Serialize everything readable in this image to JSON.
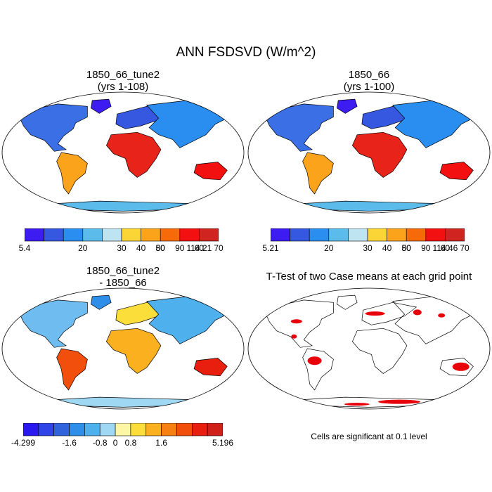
{
  "title": "ANN FSDSVD (W/m^2)",
  "panels": [
    {
      "id": "case1",
      "title_line1": "1850_66_tune2",
      "title_line2": "(yrs 1-108)",
      "colorbar": {
        "labels": [
          "5.4",
          "20",
          "30",
          "40",
          "50",
          "60",
          "70",
          "80",
          "90",
          "114.21"
        ],
        "colors": [
          "#3d1cf2",
          "#3658e0",
          "#2a8df0",
          "#5bbbeb",
          "#bde4f0",
          "#fbd535",
          "#fba31a",
          "#f66a0a",
          "#f21010",
          "#cf2420"
        ]
      }
    },
    {
      "id": "case2",
      "title_line1": "1850_66",
      "title_line2": "(yrs 1-100)",
      "colorbar": {
        "labels": [
          "5.21",
          "20",
          "30",
          "40",
          "50",
          "60",
          "70",
          "80",
          "90",
          "114.46"
        ],
        "colors": [
          "#3d1cf2",
          "#3658e0",
          "#2a8df0",
          "#5bbbeb",
          "#bde4f0",
          "#fbd535",
          "#fba31a",
          "#f66a0a",
          "#f21010",
          "#cf2420"
        ]
      }
    },
    {
      "id": "diff",
      "title_line1": "1850_66_tune2",
      "title_line2": "- 1850_66",
      "colorbar": {
        "labels": [
          "-4.299",
          "-1.6",
          "-0.8",
          "0",
          "0.8",
          "1.6",
          "5.196"
        ],
        "colors": [
          "#2a18f0",
          "#2f45e8",
          "#3164dc",
          "#2f8ee8",
          "#4fb0ee",
          "#9fd8f2",
          "#fdf6a4",
          "#fbde3a",
          "#fbb020",
          "#f78012",
          "#f24e0c",
          "#e81e0e",
          "#d0201a"
        ]
      }
    },
    {
      "id": "ttest",
      "title_line1": "T-Test of two Case means at each grid point",
      "note": "Cells are significant at 0.1 level",
      "sig_color": "#e8000b"
    }
  ]
}
